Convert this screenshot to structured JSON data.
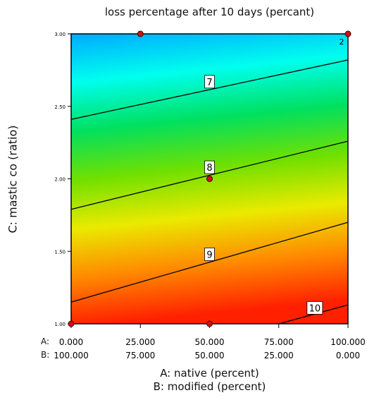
{
  "chart_data": {
    "type": "contour",
    "title": "loss percentage after 10 days (percant)",
    "ylabel": "C: mastic co (ratio)",
    "xlabel_lines": [
      "A: native (percent)",
      "B: modified (percent)"
    ],
    "x_axis_rows": [
      {
        "label": "A:",
        "ticks": [
          "0.000",
          "25.000",
          "50.000",
          "75.000",
          "100.000"
        ]
      },
      {
        "label": "B:",
        "ticks": [
          "100.000",
          "75.000",
          "50.000",
          "25.000",
          "0.000"
        ]
      }
    ],
    "x_values": [
      0,
      25,
      50,
      75,
      100
    ],
    "xlim": [
      0,
      100
    ],
    "y_ticks": [
      "1.00",
      "1.50",
      "2.00",
      "2.50",
      "3.00"
    ],
    "y_values": [
      1.0,
      1.5,
      2.0,
      2.5,
      3.0
    ],
    "ylim": [
      1.0,
      3.0
    ],
    "color_scale": [
      "#00aaff",
      "#00ffee",
      "#00e060",
      "#70e000",
      "#eaea00",
      "#ff8a00",
      "#ff2000"
    ],
    "contours": [
      {
        "label": "7",
        "points": [
          [
            0,
            2.41
          ],
          [
            100,
            2.82
          ]
        ],
        "label_at": [
          50,
          2.67
        ]
      },
      {
        "label": "8",
        "points": [
          [
            0,
            1.79
          ],
          [
            100,
            2.26
          ]
        ],
        "label_at": [
          50,
          2.08
        ]
      },
      {
        "label": "9",
        "points": [
          [
            0,
            1.15
          ],
          [
            100,
            1.7
          ]
        ],
        "label_at": [
          50,
          1.48
        ]
      },
      {
        "label": "10",
        "points": [
          [
            75,
            1.0
          ],
          [
            100,
            1.13
          ]
        ],
        "label_at": [
          88,
          1.11
        ]
      }
    ],
    "design_points": [
      {
        "x": 25,
        "y": 3.0
      },
      {
        "x": 100,
        "y": 3.0
      },
      {
        "x": 50,
        "y": 2.0
      },
      {
        "x": 0,
        "y": 1.0
      },
      {
        "x": 50,
        "y": 1.0
      }
    ],
    "replicate_label": {
      "text": "2",
      "x": 100,
      "y": 3.0
    }
  }
}
